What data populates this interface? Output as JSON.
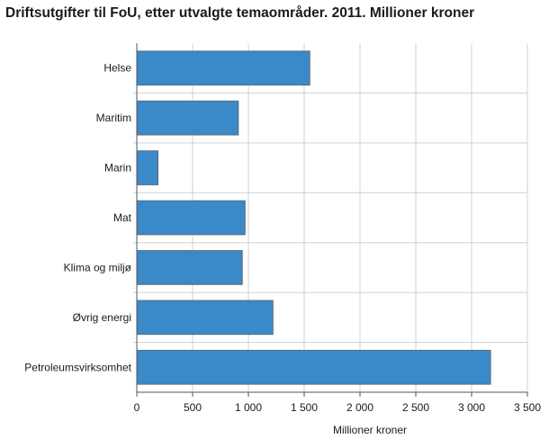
{
  "chart_data": {
    "type": "bar",
    "orientation": "horizontal",
    "title": "Driftsutgifter til FoU, etter utvalgte temaområder. 2011. Millioner kroner",
    "xlabel": "Millioner kroner",
    "ylabel": "",
    "categories": [
      "Helse",
      "Maritim",
      "Marin",
      "Mat",
      "Klima og miljø",
      "Øvrig energi",
      "Petroleumsvirksomhet"
    ],
    "values": [
      1550,
      910,
      190,
      970,
      945,
      1220,
      3170
    ],
    "xlim": [
      0,
      3500
    ],
    "ticks": [
      0,
      500,
      1000,
      1500,
      2000,
      2500,
      3000,
      3500
    ],
    "tick_labels": [
      "0",
      "500",
      "1 000",
      "1 500",
      "2 000",
      "2 500",
      "3 000",
      "3 500"
    ],
    "grid": true,
    "legend": "none",
    "bar_color": "#3a89c9",
    "bar_stroke": "#5f6b78",
    "grid_color": "#d0d0d0"
  }
}
